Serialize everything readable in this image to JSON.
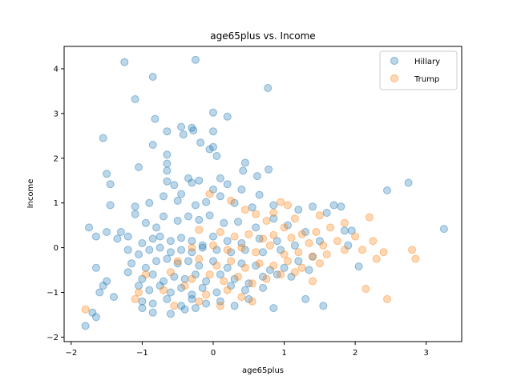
{
  "chart_data": {
    "type": "scatter",
    "title": "age65plus vs. Income",
    "xlabel": "age65plus",
    "ylabel": "Income",
    "xlim": [
      -2.1,
      3.5
    ],
    "ylim": [
      -2.1,
      4.5
    ],
    "xticks": [
      -2,
      -1,
      0,
      1,
      2,
      3
    ],
    "yticks": [
      -2,
      -1,
      0,
      1,
      2,
      3,
      4
    ],
    "grid": false,
    "legend_position": "top-right",
    "series": [
      {
        "name": "Hillary",
        "color": "#1f77b4",
        "points": [
          [
            -1.25,
            4.15
          ],
          [
            -0.25,
            4.2
          ],
          [
            -0.85,
            3.82
          ],
          [
            0.77,
            3.57
          ],
          [
            -1.1,
            3.32
          ],
          [
            0.0,
            3.02
          ],
          [
            -0.45,
            2.7
          ],
          [
            -0.3,
            2.68
          ],
          [
            0.2,
            2.93
          ],
          [
            -0.82,
            2.88
          ],
          [
            -0.65,
            2.6
          ],
          [
            -0.28,
            2.62
          ],
          [
            -0.42,
            2.53
          ],
          [
            -0.18,
            2.35
          ],
          [
            0.0,
            2.6
          ],
          [
            -0.85,
            2.3
          ],
          [
            -1.55,
            2.45
          ],
          [
            -0.65,
            2.08
          ],
          [
            -0.05,
            2.2
          ],
          [
            0.05,
            2.05
          ],
          [
            0.0,
            2.25
          ],
          [
            0.45,
            1.9
          ],
          [
            0.62,
            1.6
          ],
          [
            -1.5,
            1.65
          ],
          [
            -0.65,
            1.88
          ],
          [
            -0.65,
            1.72
          ],
          [
            -0.45,
            1.2
          ],
          [
            -0.35,
            1.55
          ],
          [
            -0.2,
            1.5
          ],
          [
            0.1,
            1.55
          ],
          [
            0.42,
            1.72
          ],
          [
            0.78,
            1.75
          ],
          [
            -1.45,
            1.42
          ],
          [
            -1.05,
            1.8
          ],
          [
            -0.65,
            1.48
          ],
          [
            -0.55,
            1.4
          ],
          [
            -0.3,
            1.45
          ],
          [
            0.0,
            1.3
          ],
          [
            0.2,
            1.42
          ],
          [
            0.4,
            1.3
          ],
          [
            0.65,
            1.18
          ],
          [
            2.75,
            1.45
          ],
          [
            2.45,
            1.28
          ],
          [
            -1.45,
            0.95
          ],
          [
            -1.1,
            0.92
          ],
          [
            -0.9,
            1.0
          ],
          [
            -0.7,
            1.15
          ],
          [
            -0.5,
            1.05
          ],
          [
            -0.25,
            0.95
          ],
          [
            -0.1,
            1.02
          ],
          [
            0.1,
            1.15
          ],
          [
            0.3,
            1.0
          ],
          [
            0.55,
            0.9
          ],
          [
            0.85,
            0.95
          ],
          [
            1.2,
            0.85
          ],
          [
            1.7,
            0.95
          ],
          [
            1.8,
            0.92
          ],
          [
            1.4,
            0.92
          ],
          [
            1.6,
            0.78
          ],
          [
            -1.75,
            0.45
          ],
          [
            -1.5,
            0.35
          ],
          [
            -1.3,
            0.35
          ],
          [
            -1.1,
            0.75
          ],
          [
            -0.95,
            0.55
          ],
          [
            -0.8,
            0.45
          ],
          [
            -0.7,
            0.7
          ],
          [
            -0.5,
            0.6
          ],
          [
            -0.35,
            0.7
          ],
          [
            -0.2,
            0.62
          ],
          [
            -0.05,
            0.72
          ],
          [
            0.15,
            0.55
          ],
          [
            0.35,
            0.58
          ],
          [
            0.6,
            0.45
          ],
          [
            0.85,
            0.65
          ],
          [
            1.05,
            0.5
          ],
          [
            1.3,
            0.35
          ],
          [
            1.85,
            0.38
          ],
          [
            1.95,
            0.38
          ],
          [
            3.25,
            0.42
          ],
          [
            -1.65,
            0.25
          ],
          [
            -1.35,
            0.2
          ],
          [
            -1.2,
            0.25
          ],
          [
            -1.0,
            0.1
          ],
          [
            -0.85,
            0.2
          ],
          [
            -0.75,
            0.25
          ],
          [
            -0.6,
            0.15
          ],
          [
            -0.45,
            0.22
          ],
          [
            -0.3,
            0.15
          ],
          [
            -0.15,
            0.05
          ],
          [
            0.0,
            0.25
          ],
          [
            0.2,
            0.15
          ],
          [
            0.4,
            0.1
          ],
          [
            0.65,
            0.2
          ],
          [
            0.9,
            0.15
          ],
          [
            1.15,
            0.05
          ],
          [
            1.5,
            0.15
          ],
          [
            1.9,
            0.05
          ],
          [
            2.05,
            -0.42
          ],
          [
            -1.2,
            -0.05
          ],
          [
            -1.05,
            -0.15
          ],
          [
            -0.9,
            -0.05
          ],
          [
            -0.75,
            0.0
          ],
          [
            -0.6,
            -0.1
          ],
          [
            -0.45,
            -0.05
          ],
          [
            -0.3,
            -0.1
          ],
          [
            -0.15,
            0.0
          ],
          [
            0.05,
            -0.05
          ],
          [
            0.25,
            -0.1
          ],
          [
            0.45,
            -0.05
          ],
          [
            0.7,
            -0.1
          ],
          [
            0.95,
            -0.05
          ],
          [
            1.2,
            -0.3
          ],
          [
            1.4,
            -0.2
          ],
          [
            -1.65,
            -0.45
          ],
          [
            -1.15,
            -0.35
          ],
          [
            -0.95,
            -0.45
          ],
          [
            -0.8,
            -0.3
          ],
          [
            -0.65,
            -0.25
          ],
          [
            -0.5,
            -0.35
          ],
          [
            -0.35,
            -0.3
          ],
          [
            -0.2,
            -0.4
          ],
          [
            0.0,
            -0.3
          ],
          [
            0.2,
            -0.45
          ],
          [
            0.4,
            -0.35
          ],
          [
            0.6,
            -0.4
          ],
          [
            0.8,
            -0.5
          ],
          [
            1.0,
            -0.45
          ],
          [
            1.35,
            -0.5
          ],
          [
            -1.5,
            -0.75
          ],
          [
            -1.2,
            -0.55
          ],
          [
            -1.0,
            -0.7
          ],
          [
            -0.85,
            -0.6
          ],
          [
            -0.7,
            -0.75
          ],
          [
            -0.55,
            -0.65
          ],
          [
            -0.4,
            -0.7
          ],
          [
            -0.25,
            -0.6
          ],
          [
            -0.1,
            -0.75
          ],
          [
            0.1,
            -0.6
          ],
          [
            0.3,
            -0.7
          ],
          [
            0.5,
            -0.8
          ],
          [
            0.7,
            -0.65
          ],
          [
            0.9,
            -0.6
          ],
          [
            1.1,
            -0.65
          ],
          [
            -1.55,
            -0.85
          ],
          [
            -1.6,
            -1.0
          ],
          [
            -1.4,
            -1.1
          ],
          [
            -1.05,
            -0.85
          ],
          [
            -0.9,
            -0.95
          ],
          [
            -0.75,
            -0.85
          ],
          [
            -0.6,
            -1.0
          ],
          [
            -0.45,
            -0.9
          ],
          [
            -0.3,
            -1.05
          ],
          [
            -0.15,
            -0.9
          ],
          [
            0.05,
            -1.0
          ],
          [
            0.25,
            -0.85
          ],
          [
            0.45,
            -0.95
          ],
          [
            0.7,
            -0.9
          ],
          [
            1.3,
            -1.15
          ],
          [
            -1.0,
            -1.2
          ],
          [
            -0.85,
            -1.25
          ],
          [
            -0.65,
            -1.15
          ],
          [
            -0.45,
            -1.3
          ],
          [
            -0.3,
            -1.15
          ],
          [
            -0.1,
            -1.25
          ],
          [
            0.1,
            -1.2
          ],
          [
            0.3,
            -1.3
          ],
          [
            0.5,
            -1.15
          ],
          [
            1.55,
            -1.3
          ],
          [
            -1.7,
            -1.45
          ],
          [
            -1.65,
            -1.55
          ],
          [
            -1.8,
            -1.75
          ],
          [
            -1.0,
            -1.35
          ],
          [
            -0.85,
            -1.45
          ],
          [
            -0.6,
            -1.48
          ],
          [
            -0.4,
            -1.38
          ],
          [
            -0.25,
            -1.35
          ],
          [
            0.85,
            -1.35
          ]
        ]
      },
      {
        "name": "Trump",
        "color": "#ff7f0e",
        "points": [
          [
            0.95,
            1.02
          ],
          [
            0.85,
            0.78
          ],
          [
            0.75,
            0.6
          ],
          [
            1.05,
            0.95
          ],
          [
            1.15,
            0.65
          ],
          [
            1.5,
            0.72
          ],
          [
            1.85,
            0.55
          ],
          [
            2.2,
            0.68
          ],
          [
            -0.05,
            1.2
          ],
          [
            0.25,
            1.05
          ],
          [
            0.45,
            0.85
          ],
          [
            0.6,
            0.75
          ],
          [
            1.0,
            0.45
          ],
          [
            1.25,
            0.3
          ],
          [
            1.45,
            0.35
          ],
          [
            1.65,
            0.45
          ],
          [
            2.0,
            0.25
          ],
          [
            2.25,
            0.15
          ],
          [
            -0.2,
            0.4
          ],
          [
            0.1,
            0.35
          ],
          [
            0.3,
            0.25
          ],
          [
            0.5,
            0.3
          ],
          [
            0.7,
            0.2
          ],
          [
            0.85,
            0.28
          ],
          [
            1.1,
            0.22
          ],
          [
            1.35,
            0.1
          ],
          [
            1.55,
            0.05
          ],
          [
            1.75,
            0.15
          ],
          [
            2.1,
            -0.05
          ],
          [
            2.4,
            -0.1
          ],
          [
            2.8,
            -0.05
          ],
          [
            -0.3,
            0.0
          ],
          [
            0.0,
            0.05
          ],
          [
            0.2,
            -0.05
          ],
          [
            0.4,
            0.0
          ],
          [
            0.6,
            -0.1
          ],
          [
            0.8,
            0.05
          ],
          [
            1.0,
            -0.15
          ],
          [
            1.2,
            -0.1
          ],
          [
            1.4,
            -0.2
          ],
          [
            1.6,
            -0.15
          ],
          [
            1.85,
            -0.05
          ],
          [
            2.3,
            -0.25
          ],
          [
            2.85,
            -0.25
          ],
          [
            -0.5,
            -0.3
          ],
          [
            -0.2,
            -0.25
          ],
          [
            0.05,
            -0.4
          ],
          [
            0.25,
            -0.3
          ],
          [
            0.45,
            -0.45
          ],
          [
            0.65,
            -0.35
          ],
          [
            0.85,
            -0.4
          ],
          [
            1.05,
            -0.3
          ],
          [
            1.25,
            -0.45
          ],
          [
            1.5,
            -0.35
          ],
          [
            -0.95,
            -0.6
          ],
          [
            -0.6,
            -0.55
          ],
          [
            -0.3,
            -0.7
          ],
          [
            -0.05,
            -0.6
          ],
          [
            0.15,
            -0.75
          ],
          [
            0.35,
            -0.65
          ],
          [
            0.55,
            -0.8
          ],
          [
            0.75,
            -0.7
          ],
          [
            0.95,
            -0.6
          ],
          [
            1.15,
            -0.55
          ],
          [
            1.4,
            -0.75
          ],
          [
            -1.05,
            -1.0
          ],
          [
            -0.7,
            -0.95
          ],
          [
            -0.4,
            -0.85
          ],
          [
            -0.1,
            -1.05
          ],
          [
            0.2,
            -0.95
          ],
          [
            0.4,
            -1.1
          ],
          [
            0.55,
            -1.2
          ],
          [
            2.15,
            -0.92
          ],
          [
            2.45,
            -1.15
          ],
          [
            -1.1,
            -1.15
          ],
          [
            -0.55,
            -1.3
          ],
          [
            -0.2,
            -1.2
          ],
          [
            0.1,
            -1.3
          ],
          [
            -1.8,
            -1.38
          ]
        ]
      }
    ]
  }
}
